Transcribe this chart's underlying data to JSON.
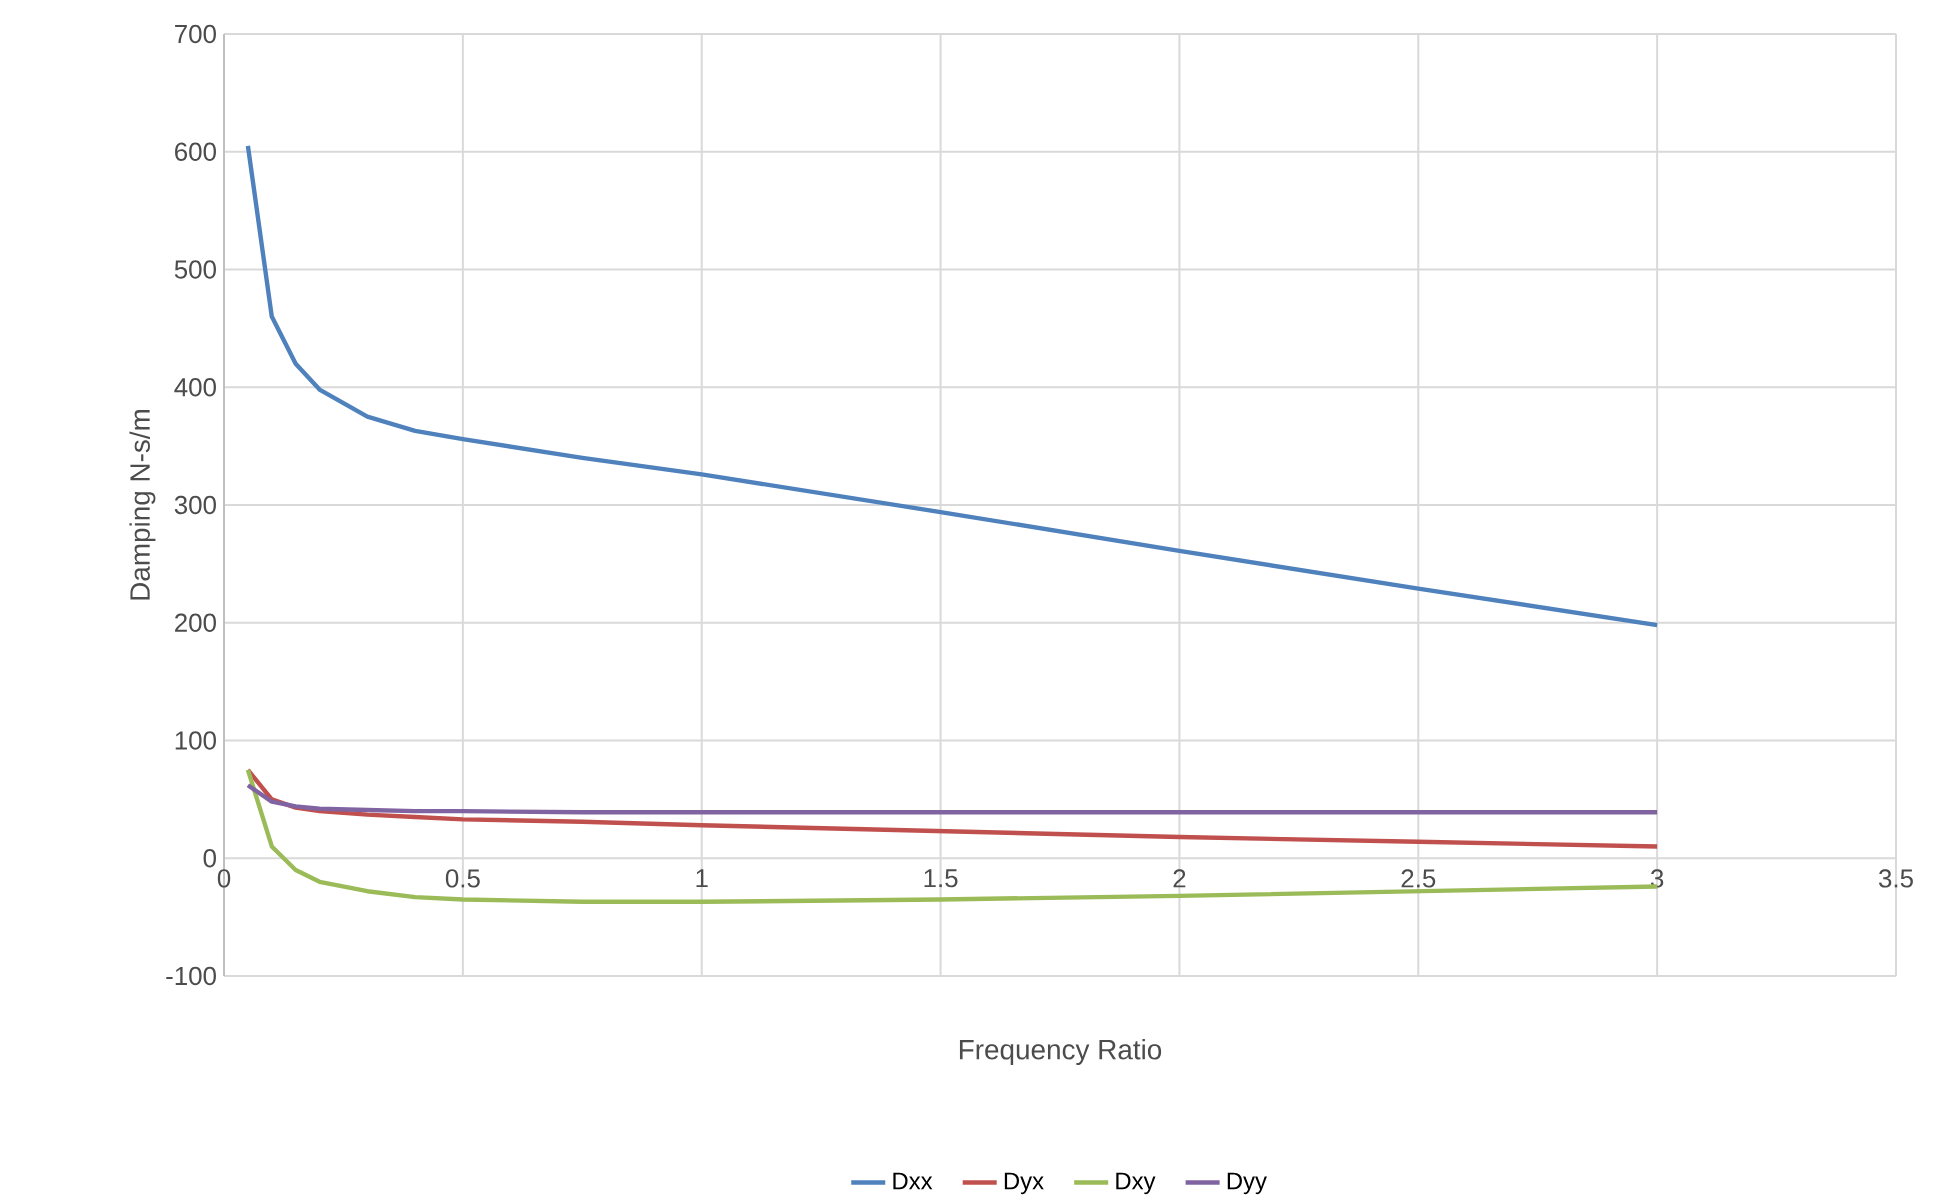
{
  "chart_data": {
    "type": "line",
    "xlabel": "Frequency Ratio",
    "ylabel": "Damping N-s/m",
    "x": [
      0.05,
      0.1,
      0.15,
      0.2,
      0.3,
      0.4,
      0.5,
      0.75,
      1,
      1.5,
      2,
      2.5,
      3
    ],
    "series": [
      {
        "name": "Dxx",
        "color": "#4f81bd",
        "values": [
          605,
          460,
          420,
          398,
          375,
          363,
          356,
          340,
          326,
          294,
          261,
          229,
          198
        ]
      },
      {
        "name": "Dyx",
        "color": "#c0504d",
        "values": [
          75,
          50,
          43,
          40,
          37,
          35,
          33,
          31,
          28,
          23,
          18,
          14,
          10
        ]
      },
      {
        "name": "Dxy",
        "color": "#9bbb59",
        "values": [
          75,
          10,
          -10,
          -20,
          -28,
          -33,
          -35,
          -37,
          -37,
          -35,
          -32,
          -28,
          -24
        ]
      },
      {
        "name": "Dyy",
        "color": "#8064a2",
        "values": [
          62,
          48,
          44,
          42,
          41,
          40,
          40,
          39,
          39,
          39,
          39,
          39,
          39
        ]
      }
    ],
    "xlim": [
      0,
      3.5
    ],
    "xticks": [
      0,
      0.5,
      1,
      1.5,
      2,
      2.5,
      3,
      3.5
    ],
    "ylim": [
      -100,
      700
    ],
    "yticks": [
      -100,
      0,
      100,
      200,
      300,
      400,
      500,
      600,
      700
    ],
    "grid": true,
    "legend": "bottom",
    "marker": "none",
    "line_style": "solid"
  }
}
